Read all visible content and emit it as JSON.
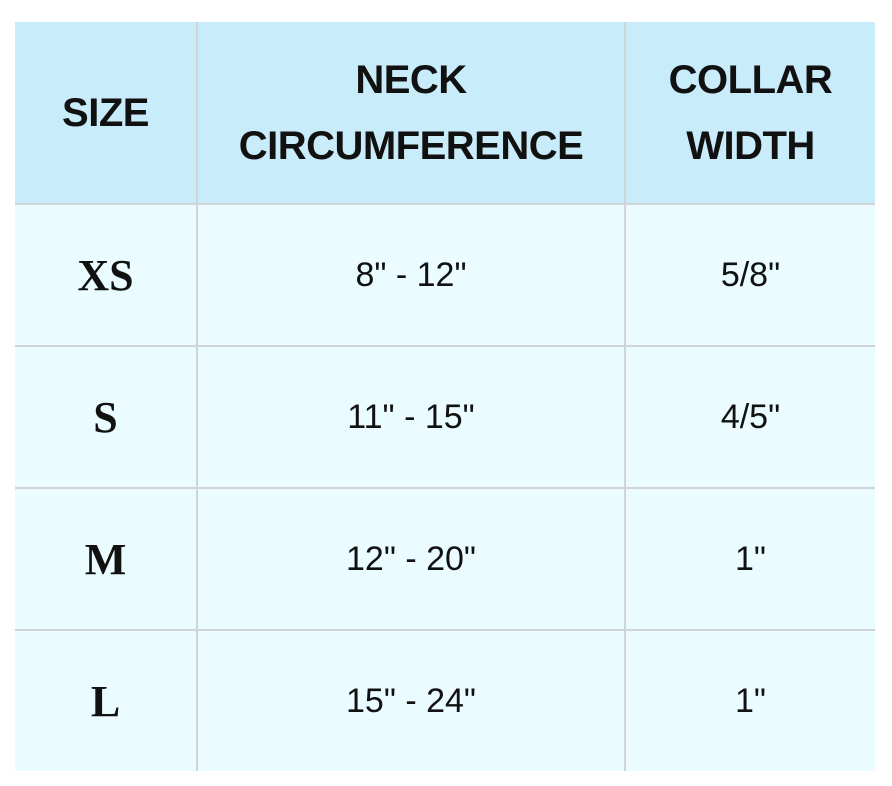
{
  "table": {
    "header": [
      "SIZE",
      "NECK CIRCUMFERENCE",
      "COLLAR WIDTH"
    ],
    "rows": [
      [
        "XS",
        "8\" - 12\"",
        "5/8\""
      ],
      [
        "S",
        "11\" - 15\"",
        "4/5\""
      ],
      [
        "M",
        "12\" - 20\"",
        "1\""
      ],
      [
        "L",
        "15\" - 24\"",
        "1\""
      ]
    ]
  }
}
